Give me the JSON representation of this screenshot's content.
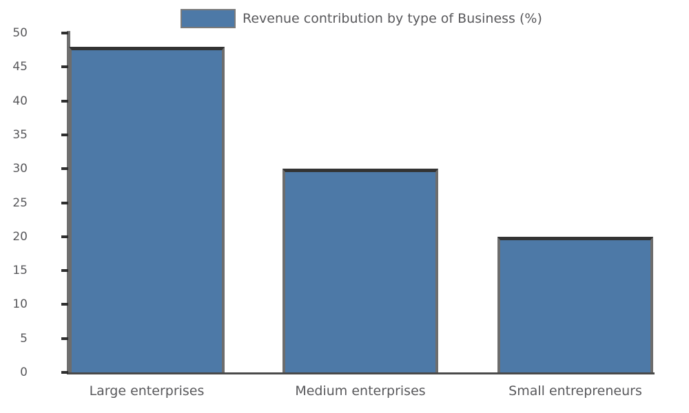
{
  "chart_data": {
    "type": "bar",
    "title": "",
    "legend_label": "Revenue contribution by type of Business (%)",
    "legend_position": "top-center",
    "categories": [
      "Large enterprises",
      "Medium enterprises",
      "Small entrepreneurs"
    ],
    "values": [
      48,
      30,
      20
    ],
    "xlabel": "",
    "ylabel": "",
    "ylim": [
      0,
      50
    ],
    "ytick_step": 5,
    "yticks": [
      0,
      5,
      10,
      15,
      20,
      25,
      30,
      35,
      40,
      45,
      50
    ],
    "grid": false,
    "colors": {
      "background": "#ffffff",
      "bar_fill": "#4d79a7",
      "bar_edge_top": "#333333",
      "bar_edge_side": "#6d6d6d",
      "axis_spine": "#6f6f6f",
      "baseline": "#4a4a4a",
      "tick_mark": "#2f2f2f",
      "text": "#58585b",
      "legend_swatch_border": "#7a7a7a"
    }
  }
}
